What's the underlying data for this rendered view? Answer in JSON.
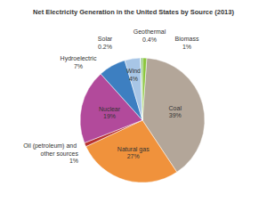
{
  "chart_data": {
    "type": "pie",
    "title": "Net Electricity Generation in the United States by Source (2013)",
    "categories": [
      "Coal",
      "Natural gas",
      "Oil (petroleum) and other sources",
      "Nuclear",
      "Hydroelectric",
      "Wind",
      "Solar",
      "Geothermal",
      "Biomass"
    ],
    "values": [
      39,
      27,
      1,
      19,
      7,
      4,
      0.2,
      0.4,
      1
    ],
    "value_labels": [
      "39%",
      "27%",
      "1%",
      "19%",
      "7%",
      "4%",
      "0.2%",
      "0.4%",
      "1%"
    ],
    "colors": [
      "#b3a699",
      "#f0923c",
      "#b8312f",
      "#b24a9b",
      "#3d7fc1",
      "#a8c6e6",
      "#d6e3f0",
      "#63b346",
      "#8cc63f"
    ],
    "data_labels": true
  }
}
